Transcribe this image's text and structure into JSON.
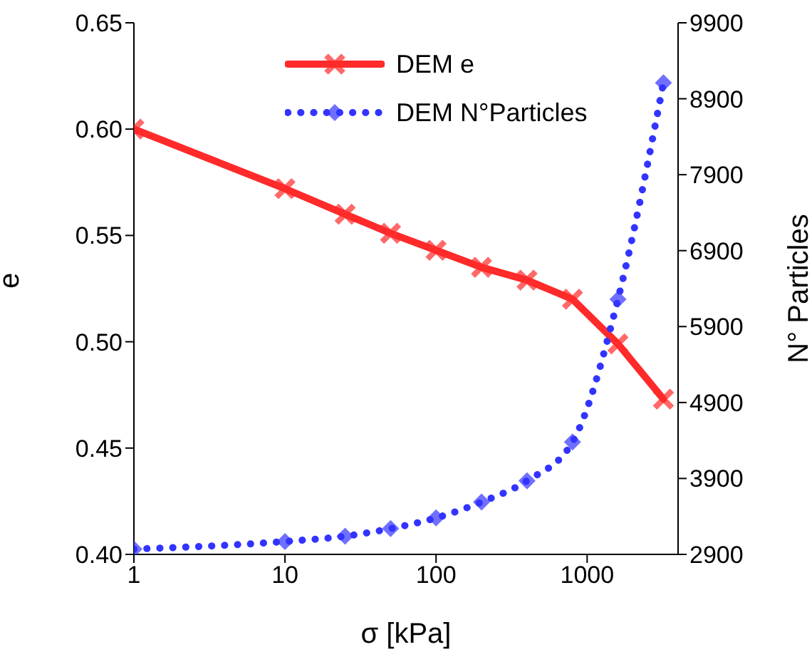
{
  "chart_data": {
    "type": "line",
    "xlabel": "σ [kPa]",
    "ylabel": "e",
    "y2label": "N° Particles",
    "log": "x",
    "legend": "top",
    "x": [
      1,
      10,
      25,
      50,
      100,
      200,
      400,
      800,
      1600,
      3200
    ],
    "xlim": [
      1,
      4000
    ],
    "xticks": [
      1,
      10,
      100,
      1000
    ],
    "ylim": [
      0.4,
      0.65
    ],
    "yticks": [
      {
        "value": 0.4,
        "label": "0.40"
      },
      0.45,
      {
        "value": 0.5,
        "label": "0.50"
      },
      0.55,
      {
        "value": 0.6,
        "label": "0.60"
      },
      0.65
    ],
    "y2lim": [
      2900,
      9900
    ],
    "y2ticks": [
      2900,
      3900,
      4900,
      5900,
      6900,
      7900,
      8900,
      9900
    ],
    "series": [
      {
        "name": "DEM e",
        "color": "#ff2a2a",
        "marker": "cross",
        "line_style": "solid",
        "values": [
          0.6,
          0.572,
          0.56,
          0.551,
          0.543,
          0.535,
          0.529,
          0.52,
          0.499,
          0.473
        ]
      },
      {
        "name": "DEM N°Particles",
        "color": "#3333ff",
        "marker": "diamond",
        "line_style": "dotted",
        "axis": "y2",
        "values": [
          2970,
          3070,
          3140,
          3240,
          3380,
          3590,
          3870,
          4380,
          6260,
          9110
        ]
      }
    ]
  }
}
